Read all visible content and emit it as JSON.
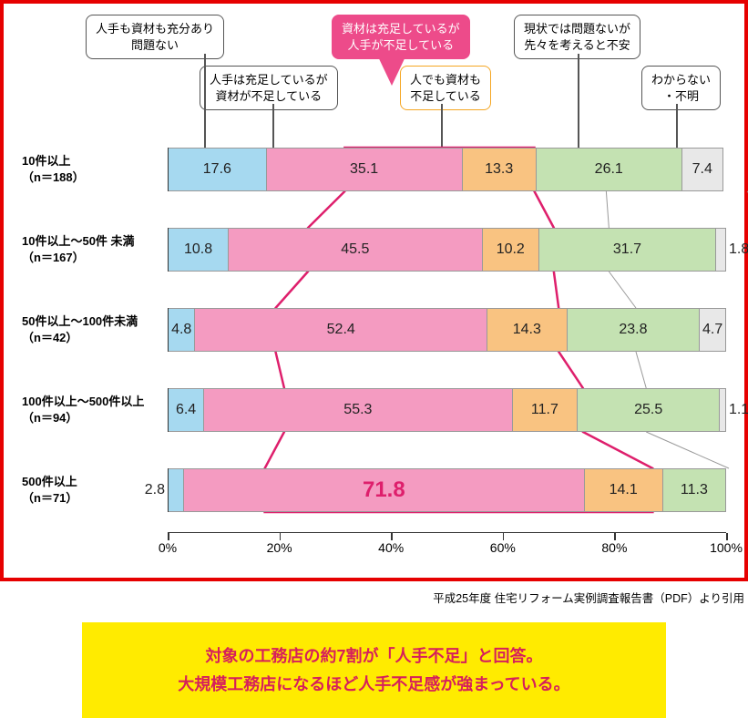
{
  "chart": {
    "type": "stacked-bar-horizontal",
    "border_color": "#e60000",
    "colors": {
      "blue": "#a6d9f0",
      "pink": "#f49bc1",
      "pink_outline": "#de1f6c",
      "orange": "#f9c381",
      "green": "#c4e2b2",
      "grey": "#e8e8e8"
    },
    "callouts": [
      {
        "id": "c1",
        "text_l1": "人手も資材も充分あり",
        "text_l2": "問題ない"
      },
      {
        "id": "c2",
        "text_l1": "人手は充足しているが",
        "text_l2": "資材が不足している"
      },
      {
        "id": "c3",
        "text_l1": "資材は充足しているが",
        "text_l2": "人手が不足している"
      },
      {
        "id": "c4",
        "text_l1": "人でも資材も",
        "text_l2": "不足している"
      },
      {
        "id": "c5",
        "text_l1": "現状では問題ないが",
        "text_l2": "先々を考えると不安"
      },
      {
        "id": "c6",
        "text_l1": "わからない",
        "text_l2": "・不明"
      }
    ],
    "rows": [
      {
        "label_l1": "10件以上",
        "label_l2": "（n＝188）",
        "segments": [
          {
            "k": "blue",
            "v": 17.6
          },
          {
            "k": "pink",
            "v": 35.1
          },
          {
            "k": "orange",
            "v": 13.3
          },
          {
            "k": "green",
            "v": 26.1
          },
          {
            "k": "grey",
            "v": 7.4
          }
        ]
      },
      {
        "label_l1": "10件以上～50件 未満",
        "label_l2": "（n＝167）",
        "segments": [
          {
            "k": "blue",
            "v": 10.8
          },
          {
            "k": "pink",
            "v": 45.5
          },
          {
            "k": "orange",
            "v": 10.2
          },
          {
            "k": "green",
            "v": 31.7
          },
          {
            "k": "grey",
            "v": 1.8
          }
        ]
      },
      {
        "label_l1": "50件以上～100件未満",
        "label_l2": "（n＝42）",
        "segments": [
          {
            "k": "blue",
            "v": 4.8
          },
          {
            "k": "pink",
            "v": 52.4
          },
          {
            "k": "orange",
            "v": 14.3
          },
          {
            "k": "green",
            "v": 23.8
          },
          {
            "k": "grey",
            "v": 4.7
          }
        ]
      },
      {
        "label_l1": "100件以上～500件以上",
        "label_l2": "（n＝94）",
        "segments": [
          {
            "k": "blue",
            "v": 6.4
          },
          {
            "k": "pink",
            "v": 55.3
          },
          {
            "k": "orange",
            "v": 11.7
          },
          {
            "k": "green",
            "v": 25.5
          },
          {
            "k": "grey",
            "v": 1.1
          }
        ]
      },
      {
        "label_l1": "500件以上",
        "label_l2": "（n＝71）",
        "segments": [
          {
            "k": "blue",
            "v": 2.8
          },
          {
            "k": "pink",
            "v": 71.8,
            "big": true
          },
          {
            "k": "orange",
            "v": 14.1
          },
          {
            "k": "green",
            "v": 11.3
          },
          {
            "k": "grey",
            "v": 0.0
          }
        ]
      }
    ],
    "axis": {
      "min": 0,
      "max": 100,
      "ticks": [
        0,
        20,
        40,
        60,
        80,
        100
      ],
      "suffix": "%"
    }
  },
  "source": "平成25年度 住宅リフォーム実例調査報告書（PDF）より引用",
  "summary_l1": "対象の工務店の約7割が「人手不足」と回答。",
  "summary_l2": "大規模工務店になるほど人手不足感が強まっている。",
  "summary_bg": "#ffeb00",
  "summary_color": "#d61f5b"
}
